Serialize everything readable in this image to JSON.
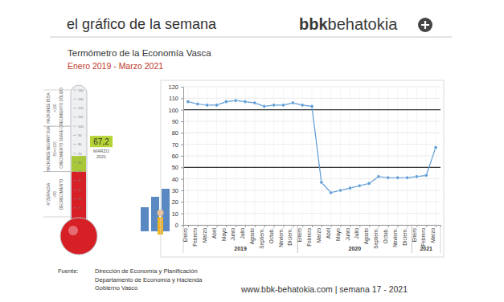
{
  "header": {
    "title": "el gráfico de la semana",
    "brand_bold": "bbk",
    "brand_light": "behatokia"
  },
  "thermometer": {
    "title": "Termómetro de la Economía Vasca",
    "subtitle": "Enero 2019 - Marzo 2021",
    "value": 67.2,
    "value_label": "67,2",
    "date_lines": [
      "MARZO",
      "2021"
    ],
    "lim": [
      0,
      140
    ],
    "ticks": [
      10,
      20,
      30,
      40,
      50,
      60,
      70,
      80,
      90,
      100,
      110,
      120,
      130,
      140
    ],
    "zones": [
      {
        "from": 100,
        "to": 140,
        "lines": [
          "HAZKUNDE BIZIA",
          ">100",
          "CRECIMIENTO SÓLIDO"
        ]
      },
      {
        "from": 50,
        "to": 100,
        "lines": [
          "HAZKUNDE NEURRITSUA",
          "50<>100",
          "CRECIMIENTO SUAVE"
        ]
      },
      {
        "from": 0,
        "to": 50,
        "lines": [
          "ATZERALDIA",
          "<50",
          "DECRECIMIENTO"
        ]
      }
    ]
  },
  "chart_data": {
    "type": "line",
    "categories": [
      "Enero",
      "Febrero",
      "Marzo",
      "Abril",
      "Mayo",
      "Junio",
      "Julio",
      "Agosto",
      "Septiem.",
      "Octub.",
      "Noviem.",
      "Diciem.",
      "Enero",
      "Febrero",
      "Marzo",
      "Abril",
      "Mayo",
      "Junio",
      "Julio",
      "Agosto",
      "Septiem.",
      "Octub.",
      "Noviem.",
      "Diciem.",
      "Enero",
      "Febrero",
      "Marzo"
    ],
    "values": [
      107,
      105,
      104,
      104,
      107,
      108,
      107,
      106,
      103,
      104,
      104,
      106,
      104,
      103,
      37,
      28,
      30,
      32,
      34,
      36,
      42,
      41,
      41,
      41,
      42,
      43,
      67.2
    ],
    "year_groups": [
      {
        "label": "2019",
        "count": 12
      },
      {
        "label": "2020",
        "count": 12
      },
      {
        "label": "2021",
        "count": 3
      }
    ],
    "reference_lines": [
      50,
      100
    ],
    "color": "#5b9bd5",
    "marker": "circle",
    "ylim": [
      0,
      120
    ],
    "yticks": [
      0,
      10,
      20,
      30,
      40,
      50,
      60,
      70,
      80,
      90,
      100,
      110,
      120
    ],
    "grid": true
  },
  "footer": {
    "source_label": "Fuente:",
    "source_lines": [
      "Dirección de Economía y Planificación",
      "Departamento de Economía y Hacienda",
      "Gobierno Vasco"
    ],
    "url": "www.bbk-behatokia.com | semana 17 - 2021"
  }
}
